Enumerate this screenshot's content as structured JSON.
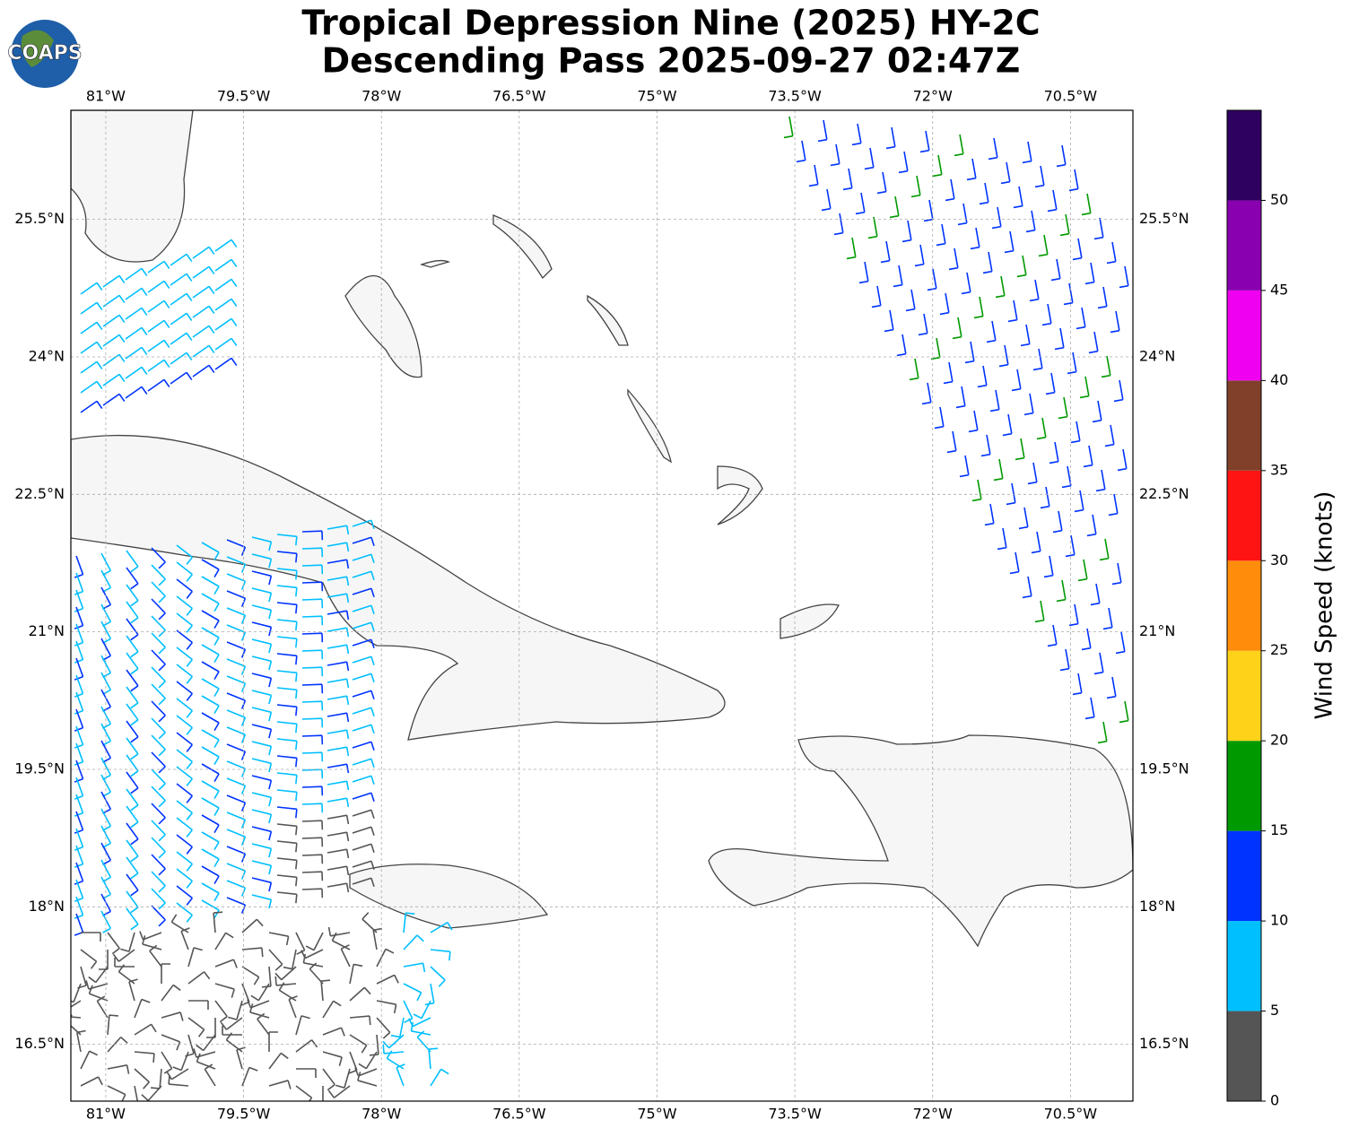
{
  "logo": "COAPS",
  "title": [
    "Tropical Depression Nine (2025) HY-2C",
    "Descending Pass 2025-09-27 02:47Z"
  ],
  "map": {
    "xlim": [
      -81.38,
      -69.82
    ],
    "ylim": [
      15.88,
      26.69
    ],
    "xticks": [
      {
        "value": -81,
        "label": "81°W"
      },
      {
        "value": -79.5,
        "label": "79.5°W"
      },
      {
        "value": -78,
        "label": "78°W"
      },
      {
        "value": -76.5,
        "label": "76.5°W"
      },
      {
        "value": -75,
        "label": "75°W"
      },
      {
        "value": -73.5,
        "label": "73.5°W"
      },
      {
        "value": -72,
        "label": "72°W"
      },
      {
        "value": -70.5,
        "label": "70.5°W"
      }
    ],
    "yticks": [
      {
        "value": 25.5,
        "label": "25.5°N"
      },
      {
        "value": 24,
        "label": "24°N"
      },
      {
        "value": 22.5,
        "label": "22.5°N"
      },
      {
        "value": 21,
        "label": "21°N"
      },
      {
        "value": 19.5,
        "label": "19.5°N"
      },
      {
        "value": 18,
        "label": "18°N"
      },
      {
        "value": 16.5,
        "label": "16.5°N"
      }
    ],
    "grid": true
  },
  "colorbar": {
    "label": "Wind Speed (knots)",
    "clim": [
      0,
      55
    ],
    "ticks": [
      0,
      5,
      10,
      15,
      20,
      25,
      30,
      35,
      40,
      45,
      50
    ],
    "bounds": [
      0,
      5,
      10,
      15,
      20,
      25,
      30,
      35,
      40,
      45,
      50,
      55
    ],
    "colors": [
      "#555555",
      "#00bfff",
      "#0033ff",
      "#009900",
      "#ffd21a",
      "#ff8c0a",
      "#ff1414",
      "#80402a",
      "#f000f0",
      "#8800b0",
      "#2e0060"
    ]
  }
}
